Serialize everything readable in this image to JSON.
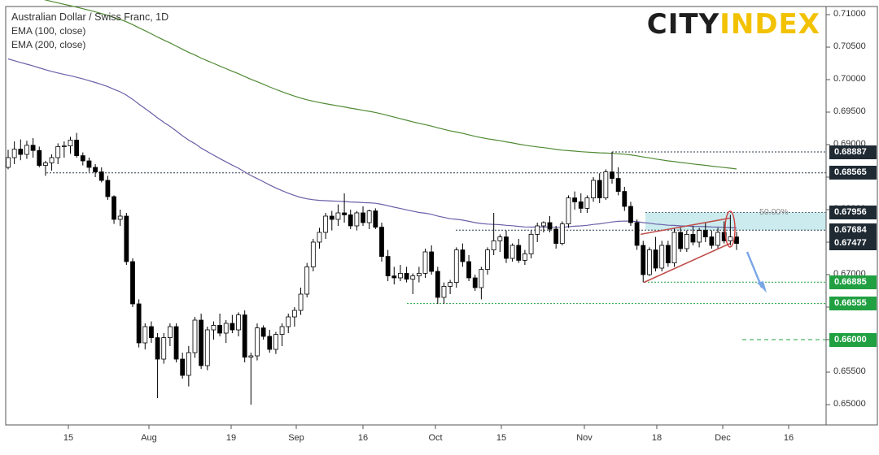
{
  "header": {
    "title": "Australian Dollar / Swiss Franc, 1D",
    "ema1": "EMA (100, close)",
    "ema2": "EMA (200, close)"
  },
  "logo": {
    "part1": "CITY",
    "part2": "INDEX"
  },
  "chart_data": {
    "type": "candlestick",
    "title": "Australian Dollar / Swiss Franc, 1D",
    "ylim": [
      0.6475,
      0.7105
    ],
    "y_ticks": [
      "0.71000",
      "0.70500",
      "0.70000",
      "0.69500",
      "0.69000",
      "0.68500",
      "0.68000",
      "0.67500",
      "0.67000",
      "0.66500",
      "0.66000",
      "0.65500",
      "0.65000"
    ],
    "x_ticks": [
      "15",
      "Aug",
      "19",
      "Sep",
      "16",
      "Oct",
      "15",
      "Nov",
      "18",
      "Dec",
      "16"
    ],
    "price_labels": [
      {
        "value": "0.68887",
        "style": "dark"
      },
      {
        "value": "0.68565",
        "style": "dark"
      },
      {
        "value": "0.67956",
        "style": "dark"
      },
      {
        "value": "0.67684",
        "style": "dark"
      },
      {
        "value": "0.67477",
        "style": "dark"
      },
      {
        "value": "0.66885",
        "style": "green"
      },
      {
        "value": "0.66555",
        "style": "green"
      },
      {
        "value": "0.66000",
        "style": "green"
      }
    ],
    "fib_label": "50.00%",
    "series": [
      {
        "name": "EMA (100, close)",
        "color": "#6a5fa8"
      },
      {
        "name": "EMA (200, close)",
        "color": "#4f8a33"
      }
    ],
    "colors": {
      "up_body": "#ffffff",
      "down_body": "#000000",
      "wick": "#000000",
      "zone": "#a9dde3",
      "wedge": "#c0504d",
      "arrow": "#7aa6e6",
      "green_line": "#21a042"
    },
    "candles": [
      [
        0.6865,
        0.6892,
        0.6862,
        0.688
      ],
      [
        0.688,
        0.6905,
        0.687,
        0.6893
      ],
      [
        0.6893,
        0.6908,
        0.6876,
        0.6885
      ],
      [
        0.6885,
        0.6906,
        0.6878,
        0.6899
      ],
      [
        0.6899,
        0.691,
        0.688,
        0.6891
      ],
      [
        0.6891,
        0.6897,
        0.6865,
        0.6868
      ],
      [
        0.6868,
        0.6875,
        0.6852,
        0.6872
      ],
      [
        0.6872,
        0.6885,
        0.686,
        0.688
      ],
      [
        0.688,
        0.6902,
        0.687,
        0.6897
      ],
      [
        0.6897,
        0.6905,
        0.688,
        0.6898
      ],
      [
        0.6898,
        0.6912,
        0.6886,
        0.6907
      ],
      [
        0.6907,
        0.6918,
        0.688,
        0.6883
      ],
      [
        0.6883,
        0.6888,
        0.6868,
        0.6875
      ],
      [
        0.6875,
        0.688,
        0.6858,
        0.6865
      ],
      [
        0.6865,
        0.687,
        0.685,
        0.6858
      ],
      [
        0.6858,
        0.6865,
        0.6842,
        0.6845
      ],
      [
        0.6845,
        0.6852,
        0.6815,
        0.682
      ],
      [
        0.682,
        0.6822,
        0.6778,
        0.6785
      ],
      [
        0.6785,
        0.68,
        0.6775,
        0.679
      ],
      [
        0.679,
        0.6795,
        0.6715,
        0.672
      ],
      [
        0.672,
        0.6725,
        0.665,
        0.6655
      ],
      [
        0.6655,
        0.6662,
        0.6588,
        0.6595
      ],
      [
        0.6595,
        0.6625,
        0.6585,
        0.662
      ],
      [
        0.662,
        0.6628,
        0.6595,
        0.6603
      ],
      [
        0.6603,
        0.661,
        0.651,
        0.657
      ],
      [
        0.657,
        0.661,
        0.6563,
        0.6603
      ],
      [
        0.6603,
        0.6625,
        0.659,
        0.662
      ],
      [
        0.662,
        0.6625,
        0.6565,
        0.657
      ],
      [
        0.657,
        0.658,
        0.654,
        0.6545
      ],
      [
        0.6545,
        0.659,
        0.6528,
        0.658
      ],
      [
        0.658,
        0.6635,
        0.6572,
        0.663
      ],
      [
        0.663,
        0.664,
        0.6555,
        0.656
      ],
      [
        0.656,
        0.662,
        0.6553,
        0.6615
      ],
      [
        0.6615,
        0.6628,
        0.66,
        0.6622
      ],
      [
        0.6622,
        0.664,
        0.6605,
        0.661
      ],
      [
        0.661,
        0.663,
        0.6595,
        0.6625
      ],
      [
        0.6625,
        0.6638,
        0.661,
        0.6615
      ],
      [
        0.6615,
        0.6642,
        0.6605,
        0.6638
      ],
      [
        0.6638,
        0.6645,
        0.6565,
        0.6573
      ],
      [
        0.6573,
        0.658,
        0.65,
        0.6575
      ],
      [
        0.6575,
        0.6625,
        0.6568,
        0.6618
      ],
      [
        0.6618,
        0.6622,
        0.66,
        0.6605
      ],
      [
        0.6605,
        0.6615,
        0.658,
        0.6585
      ],
      [
        0.6585,
        0.6612,
        0.6578,
        0.6608
      ],
      [
        0.6608,
        0.6625,
        0.659,
        0.662
      ],
      [
        0.662,
        0.664,
        0.661,
        0.6635
      ],
      [
        0.6635,
        0.665,
        0.662,
        0.6645
      ],
      [
        0.6645,
        0.668,
        0.6638,
        0.667
      ],
      [
        0.667,
        0.6718,
        0.6665,
        0.6712
      ],
      [
        0.6712,
        0.6755,
        0.6705,
        0.675
      ],
      [
        0.675,
        0.6772,
        0.674,
        0.6765
      ],
      [
        0.6765,
        0.6795,
        0.6755,
        0.679
      ],
      [
        0.679,
        0.6798,
        0.6768,
        0.6785
      ],
      [
        0.6785,
        0.6808,
        0.6775,
        0.6795
      ],
      [
        0.6795,
        0.6825,
        0.678,
        0.6792
      ],
      [
        0.6792,
        0.68,
        0.677,
        0.6775
      ],
      [
        0.6775,
        0.6798,
        0.6768,
        0.6795
      ],
      [
        0.6795,
        0.6805,
        0.6775,
        0.678
      ],
      [
        0.678,
        0.68,
        0.677,
        0.6798
      ],
      [
        0.6798,
        0.6802,
        0.677,
        0.6773
      ],
      [
        0.6773,
        0.678,
        0.672,
        0.6728
      ],
      [
        0.6728,
        0.6738,
        0.669,
        0.6698
      ],
      [
        0.6698,
        0.6712,
        0.6685,
        0.6695
      ],
      [
        0.6695,
        0.6715,
        0.669,
        0.6702
      ],
      [
        0.6702,
        0.6712,
        0.6688,
        0.6693
      ],
      [
        0.6693,
        0.6702,
        0.667,
        0.6698
      ],
      [
        0.6698,
        0.6712,
        0.6688,
        0.6702
      ],
      [
        0.6702,
        0.674,
        0.6695,
        0.6735
      ],
      [
        0.6735,
        0.6745,
        0.67,
        0.6705
      ],
      [
        0.6705,
        0.6712,
        0.6655,
        0.6665
      ],
      [
        0.6665,
        0.6688,
        0.6655,
        0.6682
      ],
      [
        0.6682,
        0.6692,
        0.667,
        0.6688
      ],
      [
        0.6688,
        0.6742,
        0.668,
        0.6738
      ],
      [
        0.6738,
        0.6748,
        0.6712,
        0.672
      ],
      [
        0.672,
        0.673,
        0.669,
        0.6695
      ],
      [
        0.6695,
        0.67,
        0.6675,
        0.668
      ],
      [
        0.668,
        0.6712,
        0.6662,
        0.6708
      ],
      [
        0.6708,
        0.6742,
        0.67,
        0.6738
      ],
      [
        0.6738,
        0.6795,
        0.673,
        0.6752
      ],
      [
        0.6752,
        0.6762,
        0.6735,
        0.6758
      ],
      [
        0.6758,
        0.6768,
        0.6718,
        0.6725
      ],
      [
        0.6725,
        0.6748,
        0.672,
        0.6745
      ],
      [
        0.6745,
        0.6755,
        0.6718,
        0.6722
      ],
      [
        0.6722,
        0.6738,
        0.6715,
        0.6732
      ],
      [
        0.6732,
        0.6768,
        0.6725,
        0.6762
      ],
      [
        0.6762,
        0.678,
        0.675,
        0.6775
      ],
      [
        0.6775,
        0.6782,
        0.6765,
        0.678
      ],
      [
        0.678,
        0.679,
        0.6765,
        0.677
      ],
      [
        0.677,
        0.6775,
        0.674,
        0.6748
      ],
      [
        0.6748,
        0.6782,
        0.6745,
        0.6778
      ],
      [
        0.6778,
        0.6822,
        0.6772,
        0.6818
      ],
      [
        0.6818,
        0.6828,
        0.68,
        0.6812
      ],
      [
        0.6812,
        0.6825,
        0.6795,
        0.6802
      ],
      [
        0.6802,
        0.6822,
        0.6795,
        0.6818
      ],
      [
        0.6818,
        0.685,
        0.6812,
        0.6845
      ],
      [
        0.6845,
        0.6856,
        0.681,
        0.6818
      ],
      [
        0.6818,
        0.6862,
        0.6815,
        0.6858
      ],
      [
        0.6858,
        0.6889,
        0.684,
        0.6848
      ],
      [
        0.6848,
        0.6865,
        0.6822,
        0.6828
      ],
      [
        0.6828,
        0.6835,
        0.6798,
        0.6805
      ],
      [
        0.6805,
        0.6812,
        0.6775,
        0.678
      ],
      [
        0.678,
        0.6785,
        0.6738,
        0.6745
      ],
      [
        0.6745,
        0.6752,
        0.6688,
        0.67
      ],
      [
        0.67,
        0.6742,
        0.6698,
        0.6738
      ],
      [
        0.6738,
        0.6758,
        0.6705,
        0.671
      ],
      [
        0.671,
        0.6752,
        0.6705,
        0.6745
      ],
      [
        0.6745,
        0.6752,
        0.6712,
        0.6718
      ],
      [
        0.6718,
        0.6772,
        0.6712,
        0.6765
      ],
      [
        0.6765,
        0.6772,
        0.6735,
        0.674
      ],
      [
        0.674,
        0.6768,
        0.6735,
        0.6762
      ],
      [
        0.6762,
        0.6775,
        0.6745,
        0.675
      ],
      [
        0.675,
        0.6772,
        0.6742,
        0.6768
      ],
      [
        0.6768,
        0.678,
        0.675,
        0.6758
      ],
      [
        0.6758,
        0.6768,
        0.674,
        0.6745
      ],
      [
        0.6745,
        0.6772,
        0.674,
        0.6765
      ],
      [
        0.6765,
        0.6782,
        0.6748,
        0.6752
      ],
      [
        0.6752,
        0.6792,
        0.6745,
        0.6758
      ],
      [
        0.6758,
        0.6766,
        0.6738,
        0.6748
      ]
    ]
  }
}
